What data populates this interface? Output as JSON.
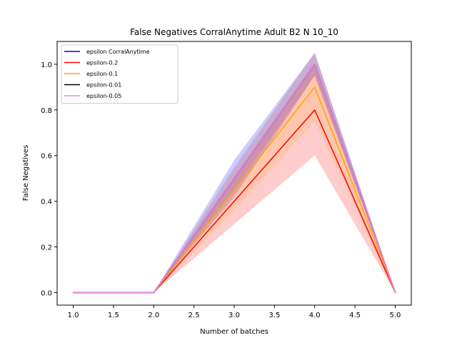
{
  "chart_data": {
    "type": "line",
    "title": "False Negatives CorralAnytime Adult B2 N 10_10",
    "xlabel": "Number of batches",
    "ylabel": "False Negatives",
    "xlim": [
      0.8,
      5.2
    ],
    "ylim": [
      -0.055,
      1.1
    ],
    "xticks": [
      1.0,
      1.5,
      2.0,
      2.5,
      3.0,
      3.5,
      4.0,
      4.5,
      5.0
    ],
    "xtick_labels": [
      "1.0",
      "1.5",
      "2.0",
      "2.5",
      "3.0",
      "3.5",
      "4.0",
      "4.5",
      "5.0"
    ],
    "yticks": [
      0.0,
      0.2,
      0.4,
      0.6,
      0.8,
      1.0
    ],
    "ytick_labels": [
      "0.0",
      "0.2",
      "0.4",
      "0.6",
      "0.8",
      "1.0"
    ],
    "grid": false,
    "legend_position": "top-left",
    "x": [
      1,
      2,
      3,
      4,
      5
    ],
    "series": [
      {
        "name": "epsilon CorralAnytime",
        "color": "#0000ff",
        "values": [
          0,
          0,
          0.5,
          1.0,
          0
        ],
        "band_lower": [
          0,
          0,
          0.42,
          0.95,
          0
        ],
        "band_upper": [
          0,
          0,
          0.58,
          1.05,
          0
        ],
        "band_color": "#0000ff",
        "band_opacity": 0.2
      },
      {
        "name": "epsilon-0.2",
        "color": "#ff0000",
        "values": [
          0,
          0,
          0.4,
          0.8,
          0
        ],
        "band_lower": [
          0,
          0,
          0.3,
          0.6,
          0
        ],
        "band_upper": [
          0,
          0,
          0.5,
          1.0,
          0
        ],
        "band_color": "#ff0000",
        "band_opacity": 0.2
      },
      {
        "name": "epsilon-0.1",
        "color": "#ffa500",
        "values": [
          0,
          0,
          0.45,
          0.9,
          0
        ],
        "band_lower": [
          0,
          0,
          0.36,
          0.75,
          0
        ],
        "band_upper": [
          0,
          0,
          0.54,
          1.05,
          0
        ],
        "band_color": "#ffa500",
        "band_opacity": 0.15
      },
      {
        "name": "epsilon-0.01",
        "color": "#000000",
        "values": [
          0,
          0,
          0.5,
          1.0,
          0
        ],
        "band_lower": [
          0,
          0,
          0.45,
          0.95,
          0
        ],
        "band_upper": [
          0,
          0,
          0.55,
          1.05,
          0
        ],
        "band_color": "#000000",
        "band_opacity": 0.08
      },
      {
        "name": "epsilon-0.05",
        "color": "#ee82ee",
        "values": [
          0,
          0,
          0.5,
          1.0,
          0
        ],
        "band_lower": [
          0,
          0,
          0.45,
          0.95,
          0
        ],
        "band_upper": [
          0,
          0,
          0.55,
          1.05,
          0
        ],
        "band_color": "#ee82ee",
        "band_opacity": 0.15
      }
    ]
  }
}
